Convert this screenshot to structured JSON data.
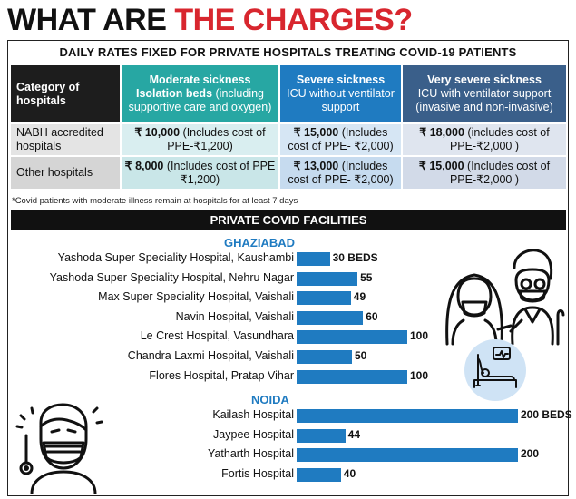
{
  "headline": {
    "part1": "WHAT ARE ",
    "part2": "THE CHARGES?"
  },
  "subtitle": "DAILY RATES FIXED FOR PRIVATE HOSPITALS TREATING COVID-19 PATIENTS",
  "rates_table": {
    "header": {
      "category": "Category of hospitals",
      "moderate": {
        "title": "Moderate sickness",
        "bold_sub": "Isolation beds",
        "sub": " (including supportive care and oxygen)"
      },
      "severe": {
        "title": "Severe sickness",
        "sub": "ICU without ventilator support"
      },
      "very_severe": {
        "title": "Very severe sickness",
        "sub": "ICU with ventilator support (invasive and non-invasive)"
      }
    },
    "rows": [
      {
        "category": "NABH accredited hospitals",
        "moderate_amount": "₹ 10,000",
        "moderate_note": " (Includes cost of PPE-₹1,200)",
        "severe_amount": "₹ 15,000",
        "severe_note": " (Includes cost of PPE- ₹2,000)",
        "very_severe_amount": "₹ 18,000",
        "very_severe_note": " (includes cost of PPE-₹2,000 )"
      },
      {
        "category": "Other hospitals",
        "moderate_amount": "₹ 8,000",
        "moderate_note": " (Includes cost of PPE ₹1,200)",
        "severe_amount": "₹ 13,000",
        "severe_note": " (Includes cost of PPE- ₹2,000)",
        "very_severe_amount": "₹ 15,000",
        "very_severe_note": " (Includes cost of PPE-₹2,000 )"
      }
    ]
  },
  "footnote": "*Covid patients with moderate illness remain at hospitals for at least 7 days",
  "facilities_title": "PRIVATE COVID FACILITIES",
  "colors": {
    "accent_red": "#d8262e",
    "bar_blue": "#1f7bc1",
    "teal": "#27a7a3",
    "navy": "#3a5f8a"
  },
  "icons": [
    "elderly-couple-masked-illustration",
    "hospital-bed-patient-icon",
    "masked-man-thermometer-illustration"
  ],
  "chart_data": {
    "type": "bar",
    "orientation": "horizontal",
    "unit": "BEDS",
    "groups": [
      {
        "name": "GHAZIABAD",
        "categories": [
          "Yashoda Super Speciality Hospital, Kaushambi",
          "Yashoda Super Speciality Hospital, Nehru Nagar",
          "Max Super Speciality Hospital, Vaishali",
          "Navin Hospital, Vaishali",
          "Le Crest Hospital, Vasundhara",
          "Chandra Laxmi Hospital, Vaishali",
          "Flores Hospital, Pratap Vihar"
        ],
        "values": [
          30,
          55,
          49,
          60,
          100,
          50,
          100
        ],
        "value_labels": [
          "30 BEDS",
          "55",
          "49",
          "60",
          "100",
          "50",
          "100"
        ]
      },
      {
        "name": "NOIDA",
        "categories": [
          "Kailash Hospital",
          "Jaypee Hospital",
          "Yatharth Hospital",
          "Fortis Hospital"
        ],
        "values": [
          200,
          44,
          200,
          40
        ],
        "value_labels": [
          "200 BEDS",
          "44",
          "200",
          "40"
        ]
      }
    ]
  }
}
